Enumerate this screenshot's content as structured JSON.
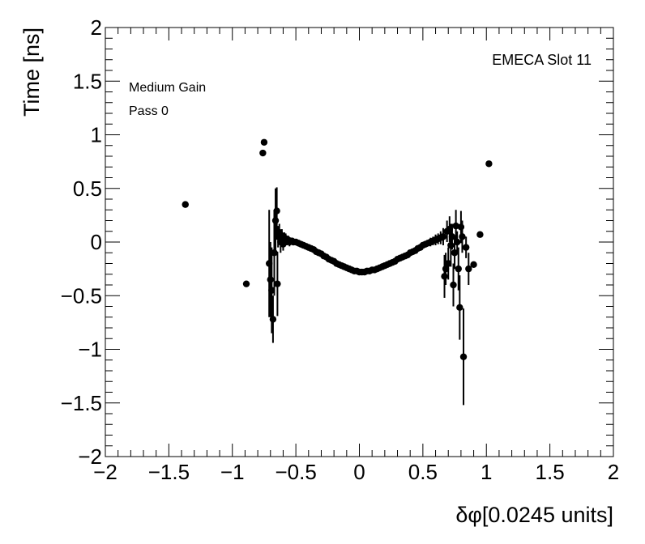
{
  "chart_data": {
    "type": "scatter",
    "title": "",
    "xlabel": "δφ[0.0245 units]",
    "ylabel": "Time [ns]",
    "xlim": [
      -2,
      2
    ],
    "ylim": [
      -2,
      2
    ],
    "x_ticks": [
      -2,
      -1.5,
      -1,
      -0.5,
      0,
      0.5,
      1,
      1.5,
      2
    ],
    "y_ticks": [
      -2,
      -1.5,
      -1,
      -0.5,
      0,
      0.5,
      1,
      1.5,
      2
    ],
    "x_tick_labels": [
      "−2",
      "−1.5",
      "−1",
      "−0.5",
      "0",
      "0.5",
      "1",
      "1.5",
      "2"
    ],
    "y_tick_labels": [
      "−2",
      "−1.5",
      "−1",
      "−0.5",
      "0",
      "0.5",
      "1",
      "1.5",
      "2"
    ],
    "grid": false,
    "marker_color": "#000000",
    "annotations": {
      "slot": "EMECA Slot 11",
      "gain": "Medium Gain",
      "pass": "Pass 0"
    },
    "series": [
      {
        "points": [
          [
            -1.37,
            0.35,
            0
          ],
          [
            -0.89,
            -0.39,
            0
          ],
          [
            -0.76,
            0.83,
            0
          ],
          [
            -0.75,
            0.93,
            0
          ],
          [
            -0.71,
            -0.2,
            0.5
          ],
          [
            -0.7,
            -0.35,
            0.35
          ],
          [
            -0.69,
            -0.45,
            0.4
          ],
          [
            -0.68,
            -0.72,
            0.22
          ],
          [
            -0.67,
            -0.1,
            0.4
          ],
          [
            -0.66,
            0.2,
            0.3
          ],
          [
            -0.65,
            0.29,
            0.22
          ],
          [
            -0.645,
            -0.39,
            0.3
          ],
          [
            -0.64,
            0.05,
            0.1
          ],
          [
            -0.63,
            0.09,
            0.08
          ],
          [
            -0.62,
            0.0,
            0.1
          ],
          [
            -0.61,
            0.06,
            0.06
          ],
          [
            -0.6,
            -0.02,
            0.06
          ],
          [
            -0.59,
            0.04,
            0.05
          ],
          [
            -0.58,
            0.03,
            0.05
          ],
          [
            -0.57,
            0.01,
            0.04
          ],
          [
            -0.56,
            0.02,
            0.04
          ],
          [
            -0.55,
            0.0,
            0.04
          ],
          [
            -0.54,
            0.01,
            0.03
          ],
          [
            -0.53,
            0.01,
            0.03
          ],
          [
            -0.52,
            0.0,
            0.03
          ],
          [
            -0.5,
            0.0,
            0.03
          ],
          [
            -0.48,
            -0.01,
            0.03
          ],
          [
            -0.46,
            -0.02,
            0.03
          ],
          [
            -0.44,
            -0.03,
            0.03
          ],
          [
            -0.42,
            -0.04,
            0.02
          ],
          [
            -0.4,
            -0.05,
            0.02
          ],
          [
            -0.38,
            -0.06,
            0.02
          ],
          [
            -0.36,
            -0.07,
            0.02
          ],
          [
            -0.34,
            -0.09,
            0.02
          ],
          [
            -0.32,
            -0.1,
            0.02
          ],
          [
            -0.3,
            -0.11,
            0.02
          ],
          [
            -0.28,
            -0.13,
            0.02
          ],
          [
            -0.26,
            -0.14,
            0.02
          ],
          [
            -0.24,
            -0.16,
            0.02
          ],
          [
            -0.22,
            -0.17,
            0.02
          ],
          [
            -0.2,
            -0.18,
            0.02
          ],
          [
            -0.18,
            -0.2,
            0.02
          ],
          [
            -0.16,
            -0.21,
            0.02
          ],
          [
            -0.14,
            -0.22,
            0.02
          ],
          [
            -0.12,
            -0.23,
            0.02
          ],
          [
            -0.1,
            -0.24,
            0.02
          ],
          [
            -0.08,
            -0.25,
            0.02
          ],
          [
            -0.06,
            -0.26,
            0.02
          ],
          [
            -0.04,
            -0.27,
            0.02
          ],
          [
            -0.02,
            -0.27,
            0.02
          ],
          [
            0.0,
            -0.28,
            0.02
          ],
          [
            0.02,
            -0.28,
            0.02
          ],
          [
            0.04,
            -0.28,
            0.02
          ],
          [
            0.06,
            -0.27,
            0.02
          ],
          [
            0.08,
            -0.27,
            0.02
          ],
          [
            0.1,
            -0.26,
            0.02
          ],
          [
            0.12,
            -0.26,
            0.02
          ],
          [
            0.14,
            -0.25,
            0.02
          ],
          [
            0.16,
            -0.24,
            0.02
          ],
          [
            0.18,
            -0.23,
            0.02
          ],
          [
            0.2,
            -0.22,
            0.02
          ],
          [
            0.22,
            -0.21,
            0.02
          ],
          [
            0.24,
            -0.2,
            0.02
          ],
          [
            0.26,
            -0.19,
            0.02
          ],
          [
            0.28,
            -0.18,
            0.02
          ],
          [
            0.3,
            -0.16,
            0.02
          ],
          [
            0.32,
            -0.15,
            0.02
          ],
          [
            0.34,
            -0.14,
            0.02
          ],
          [
            0.36,
            -0.13,
            0.02
          ],
          [
            0.38,
            -0.12,
            0.02
          ],
          [
            0.4,
            -0.1,
            0.02
          ],
          [
            0.42,
            -0.09,
            0.02
          ],
          [
            0.44,
            -0.08,
            0.02
          ],
          [
            0.46,
            -0.06,
            0.03
          ],
          [
            0.48,
            -0.05,
            0.03
          ],
          [
            0.5,
            -0.03,
            0.03
          ],
          [
            0.52,
            -0.02,
            0.03
          ],
          [
            0.54,
            -0.01,
            0.03
          ],
          [
            0.56,
            0.0,
            0.04
          ],
          [
            0.58,
            0.01,
            0.04
          ],
          [
            0.6,
            0.02,
            0.05
          ],
          [
            0.62,
            0.03,
            0.05
          ],
          [
            0.64,
            0.04,
            0.06
          ],
          [
            0.66,
            0.05,
            0.08
          ],
          [
            0.67,
            -0.32,
            0.2
          ],
          [
            0.68,
            -0.25,
            0.15
          ],
          [
            0.69,
            0.1,
            0.1
          ],
          [
            0.7,
            -0.2,
            0.15
          ],
          [
            0.71,
            0.12,
            0.12
          ],
          [
            0.72,
            -0.03,
            0.2
          ],
          [
            0.73,
            0.05,
            0.12
          ],
          [
            0.74,
            -0.4,
            0.2
          ],
          [
            0.75,
            -0.1,
            0.15
          ],
          [
            0.76,
            0.15,
            0.15
          ],
          [
            0.77,
            0.0,
            0.1
          ],
          [
            0.78,
            -0.25,
            0.2
          ],
          [
            0.79,
            -0.61,
            0.3
          ],
          [
            0.8,
            0.14,
            0.15
          ],
          [
            0.81,
            0.05,
            0.15
          ],
          [
            0.82,
            -1.07,
            0.45
          ],
          [
            0.84,
            -0.05,
            0.1
          ],
          [
            0.86,
            -0.25,
            0.15
          ],
          [
            0.9,
            -0.21,
            0
          ],
          [
            0.95,
            0.07,
            0
          ],
          [
            1.02,
            0.73,
            0
          ]
        ]
      }
    ]
  }
}
